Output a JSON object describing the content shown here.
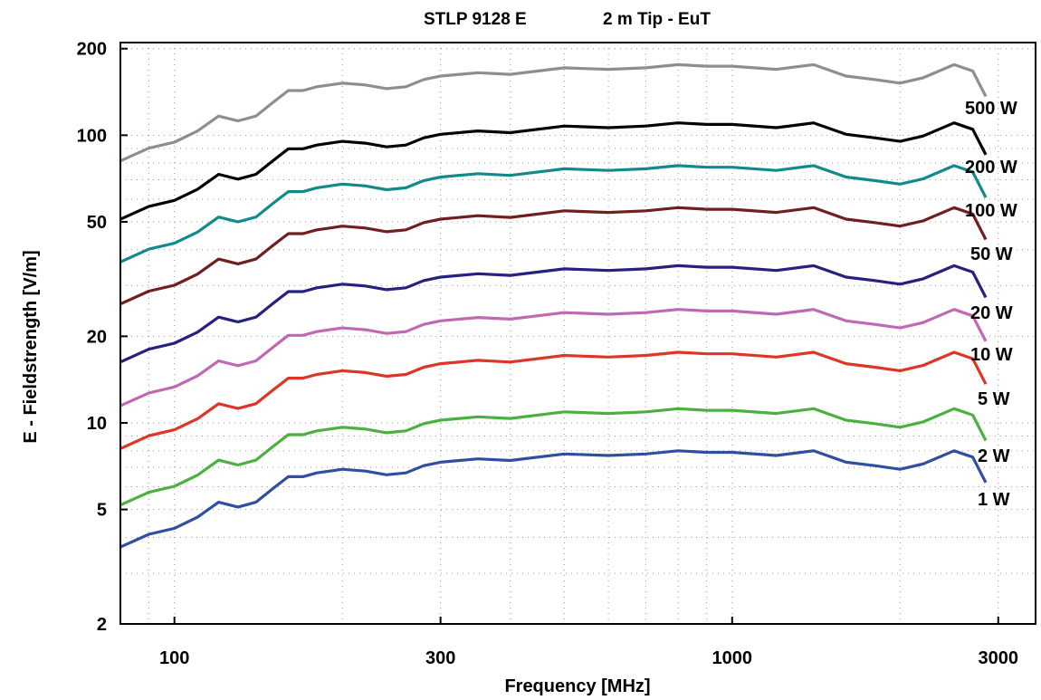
{
  "chart_data": {
    "type": "line",
    "title_left": "STLP 9128 E",
    "title_right": "2 m Tip - EuT",
    "xlabel": "Frequency [MHz]",
    "ylabel": "E - Fieldstrength [V/m]",
    "x_scale": "log",
    "y_scale": "log",
    "xlim": [
      80,
      3500
    ],
    "ylim": [
      2,
      210
    ],
    "x_ticks": [
      100,
      300,
      1000,
      3000
    ],
    "x_tick_labels": [
      "100",
      "300",
      "1000",
      "3000"
    ],
    "y_ticks": [
      2,
      5,
      10,
      20,
      50,
      100,
      200
    ],
    "y_tick_labels": [
      "2",
      "5",
      "10",
      "20",
      "50",
      "100",
      "200"
    ],
    "grid": "dotted",
    "legend": "series labels at right end of lines",
    "x": [
      80,
      90,
      100,
      110,
      120,
      130,
      140,
      150,
      160,
      170,
      180,
      190,
      200,
      220,
      240,
      260,
      280,
      300,
      350,
      400,
      500,
      600,
      700,
      800,
      900,
      1000,
      1200,
      1400,
      1600,
      1800,
      2000,
      2200,
      2500,
      2700,
      2850
    ],
    "shape_1w": [
      3.7,
      4.1,
      4.3,
      4.7,
      5.3,
      5.1,
      5.3,
      5.9,
      6.5,
      6.5,
      6.7,
      6.8,
      6.9,
      6.8,
      6.6,
      6.7,
      7.1,
      7.3,
      7.5,
      7.4,
      7.8,
      7.7,
      7.8,
      8.0,
      7.9,
      7.9,
      7.7,
      8.0,
      7.3,
      7.1,
      6.9,
      7.2,
      8.0,
      7.6,
      6.2
    ],
    "series": [
      {
        "name": "500 W",
        "color": "#8a8f92",
        "scale": 22.0
      },
      {
        "name": "200 W",
        "color": "#000000",
        "scale": 13.8
      },
      {
        "name": "100 W",
        "color": "#128a8c",
        "scale": 9.8
      },
      {
        "name": "50 W",
        "color": "#6f1f1f",
        "scale": 7.0
      },
      {
        "name": "20 W",
        "color": "#26207e",
        "scale": 4.4
      },
      {
        "name": "10 W",
        "color": "#c068b4",
        "scale": 3.1
      },
      {
        "name": "5 W",
        "color": "#dd3526",
        "scale": 2.2
      },
      {
        "name": "2 W",
        "color": "#4cb040",
        "scale": 1.4
      },
      {
        "name": "1 W",
        "color": "#2f4fa0",
        "scale": 1.0
      }
    ]
  }
}
